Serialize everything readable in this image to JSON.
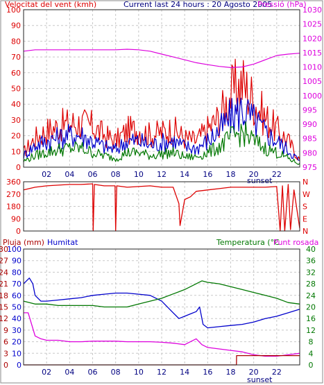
{
  "header": {
    "title": "Current last 24 hours : 20 Agosto 2005",
    "left_label": "Velocitat del vent (kmh)",
    "right_label": "Pressió (hPa)"
  },
  "panel2": {
    "right_labels": [
      "N",
      "W",
      "S",
      "E",
      "N"
    ]
  },
  "panel3": {
    "label_rain": "Pluja (mm)",
    "label_humidity": "Humitat",
    "label_temp": "Temperatura (°C",
    "label_dew": "Punt rosada"
  },
  "colors": {
    "red": "#dd0000",
    "blue": "#0000cc",
    "green": "#007700",
    "magenta": "#dd00dd",
    "darkred": "#aa0000",
    "grid": "#c8c8c8"
  },
  "x_ticks": [
    "02",
    "04",
    "06",
    "08",
    "10",
    "12",
    "14",
    "16",
    "18",
    "20",
    "22"
  ],
  "sunset_label": "sunset",
  "chart_data": [
    {
      "type": "line",
      "title": "Current last 24 hours : 20 Agosto 2005",
      "xlabel": "",
      "ylabel": "Velocitat del vent (kmh)",
      "y2label": "Pressió (hPa)",
      "x_range": [
        0,
        24
      ],
      "ylim": [
        0,
        100
      ],
      "y2lim": [
        975,
        1030
      ],
      "y_ticks": [
        0,
        10,
        20,
        30,
        40,
        50,
        60,
        70,
        80,
        90,
        100
      ],
      "y2_ticks": [
        975,
        980,
        985,
        990,
        995,
        1000,
        1005,
        1010,
        1015,
        1020,
        1025,
        1030
      ],
      "grid": true,
      "series": [
        {
          "name": "",
          "color": "#dd0000",
          "axis": "left",
          "x": [
            0,
            1,
            2,
            3,
            4,
            5,
            6,
            7,
            8,
            9,
            10,
            11,
            12,
            13,
            14,
            15,
            16,
            17,
            18,
            19,
            20,
            21,
            22,
            23,
            24
          ],
          "values": [
            10,
            20,
            25,
            28,
            30,
            30,
            28,
            22,
            18,
            25,
            26,
            22,
            24,
            26,
            20,
            18,
            26,
            34,
            50,
            58,
            46,
            34,
            26,
            18,
            5
          ]
        },
        {
          "name": "",
          "color": "#0000cc",
          "axis": "left",
          "x": [
            0,
            1,
            2,
            3,
            4,
            5,
            6,
            7,
            8,
            9,
            10,
            11,
            12,
            13,
            14,
            15,
            16,
            17,
            18,
            19,
            20,
            21,
            22,
            23,
            24
          ],
          "values": [
            8,
            15,
            18,
            20,
            22,
            22,
            18,
            14,
            12,
            18,
            18,
            15,
            17,
            18,
            14,
            13,
            18,
            25,
            34,
            40,
            32,
            24,
            18,
            12,
            4
          ]
        },
        {
          "name": "",
          "color": "#007700",
          "axis": "left",
          "x": [
            0,
            1,
            2,
            3,
            4,
            5,
            6,
            7,
            8,
            9,
            10,
            11,
            12,
            13,
            14,
            15,
            16,
            17,
            18,
            19,
            20,
            21,
            22,
            23,
            24
          ],
          "values": [
            4,
            8,
            10,
            12,
            13,
            13,
            10,
            8,
            6,
            10,
            10,
            8,
            9,
            10,
            7,
            7,
            10,
            14,
            20,
            24,
            18,
            13,
            10,
            6,
            2
          ]
        },
        {
          "name": "Pressió (hPa)",
          "color": "#dd00dd",
          "axis": "right",
          "x": [
            0,
            1,
            2,
            3,
            4,
            5,
            6,
            7,
            8,
            9,
            10,
            11,
            12,
            13,
            14,
            15,
            16,
            17,
            18,
            19,
            20,
            21,
            22,
            23,
            24
          ],
          "values": [
            1015.5,
            1016,
            1016,
            1016,
            1016,
            1016,
            1016,
            1016,
            1016,
            1016.2,
            1016,
            1015.5,
            1014.5,
            1013.5,
            1012.5,
            1011.5,
            1010.8,
            1010.2,
            1009.8,
            1010,
            1011,
            1012.5,
            1014,
            1014.5,
            1014.8
          ]
        }
      ]
    },
    {
      "type": "line",
      "ylabel": "",
      "ylim": [
        0,
        360
      ],
      "y_ticks": [
        0,
        90,
        180,
        270,
        360
      ],
      "x_range": [
        0,
        24
      ],
      "series": [
        {
          "name": "",
          "color": "#dd0000",
          "x": [
            0,
            1,
            2,
            3,
            4,
            5,
            6,
            6.05,
            6.15,
            7,
            7.95,
            8.0,
            8.1,
            9,
            10,
            11,
            12,
            13,
            13.5,
            13.6,
            14,
            14.5,
            15,
            16,
            17,
            18,
            19,
            20,
            21,
            22,
            22.3,
            22.5,
            22.7,
            23,
            23.2,
            23.5,
            24
          ],
          "values": [
            300,
            320,
            330,
            335,
            340,
            340,
            345,
            0,
            340,
            330,
            330,
            0,
            330,
            320,
            325,
            330,
            320,
            320,
            200,
            40,
            230,
            250,
            290,
            300,
            310,
            320,
            320,
            320,
            320,
            325,
            0,
            330,
            0,
            340,
            10,
            300,
            20
          ]
        }
      ]
    },
    {
      "type": "line",
      "ylabel": "Pluja (mm)",
      "ylim": [
        0,
        30
      ],
      "y_ticks": [
        0,
        3,
        6,
        9,
        12,
        15,
        18,
        21,
        24,
        27,
        30
      ],
      "humidity_ticks": [
        0,
        10,
        20,
        30,
        40,
        50,
        60,
        70,
        80,
        90,
        100
      ],
      "y2label": "Temperatura (°C",
      "y2lim": [
        0,
        40
      ],
      "y2_ticks": [
        0,
        4,
        8,
        12,
        16,
        20,
        24,
        28,
        32,
        36,
        40
      ],
      "x_range": [
        0,
        24
      ],
      "series": [
        {
          "name": "Humitat",
          "color": "#0000cc",
          "axis": "humidity",
          "x": [
            0,
            0.5,
            0.8,
            1,
            1.5,
            2,
            3,
            4,
            5,
            6,
            7,
            8,
            9,
            10,
            11,
            12,
            13,
            13.5,
            14,
            14.5,
            15,
            15.3,
            15.6,
            16,
            17,
            18,
            19,
            20,
            21,
            22,
            23,
            24
          ],
          "values": [
            70,
            75,
            70,
            60,
            55,
            55,
            56,
            57,
            58,
            60,
            61,
            62,
            62,
            61,
            60,
            55,
            45,
            40,
            42,
            44,
            46,
            50,
            35,
            32,
            33,
            34,
            35,
            37,
            40,
            42,
            45,
            48
          ]
        },
        {
          "name": "Temperatura (°C",
          "color": "#007700",
          "axis": "right",
          "x": [
            0,
            1,
            2,
            3,
            4,
            5,
            6,
            7,
            8,
            9,
            10,
            11,
            12,
            13,
            14,
            15,
            15.5,
            16,
            17,
            18,
            19,
            20,
            21,
            22,
            23,
            24
          ],
          "values": [
            22,
            21,
            21,
            20.5,
            20.5,
            20.5,
            20.5,
            20,
            20,
            20,
            21,
            22,
            23,
            24.5,
            26,
            28,
            29,
            28.5,
            28,
            27,
            26,
            25,
            24,
            23,
            21.5,
            21
          ]
        },
        {
          "name": "Punt rosada",
          "color": "#dd00dd",
          "axis": "right",
          "x": [
            0,
            0.4,
            1,
            1.5,
            2,
            3,
            4,
            5,
            6,
            7,
            8,
            9,
            10,
            11,
            12,
            13,
            14,
            14.5,
            15,
            15.5,
            16,
            17,
            18,
            19,
            20,
            21,
            22,
            23,
            24
          ],
          "values": [
            18,
            18,
            10,
            9,
            8.5,
            8.5,
            8,
            8,
            8.2,
            8.2,
            8.2,
            8,
            8,
            8,
            7.8,
            7.5,
            7,
            8,
            9,
            7,
            6,
            5.5,
            5,
            4.5,
            3.5,
            3,
            3,
            3.5,
            4
          ]
        },
        {
          "name": "Pluja (mm)",
          "color": "#aa0000",
          "axis": "left",
          "x": [
            0,
            18.5,
            18.51,
            24
          ],
          "values": [
            0,
            0,
            2.4,
            2.4
          ]
        }
      ]
    }
  ]
}
